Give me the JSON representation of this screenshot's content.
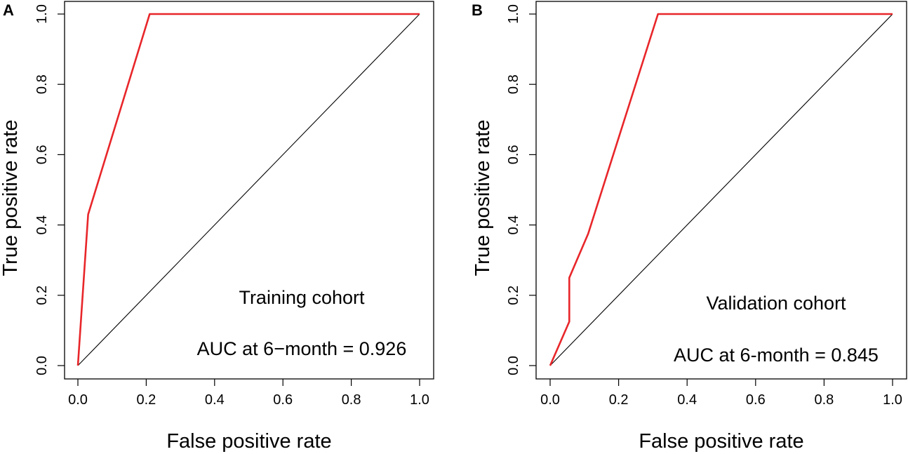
{
  "chart_data": [
    {
      "type": "line",
      "panel_label": "A",
      "xlabel": "False positive rate",
      "ylabel": "True positive rate",
      "xlim": [
        0,
        1
      ],
      "ylim": [
        0,
        1
      ],
      "xticks": [
        "0.0",
        "0.2",
        "0.4",
        "0.6",
        "0.8",
        "1.0"
      ],
      "yticks": [
        "0.0",
        "0.2",
        "0.4",
        "0.6",
        "0.8",
        "1.0"
      ],
      "annotations": {
        "cohort": "Training cohort",
        "auc": "AUC at 6−month = 0.926"
      },
      "series": [
        {
          "name": "ROC",
          "color": "#e8262a",
          "x": [
            0,
            0.03,
            0.21,
            1.0
          ],
          "y": [
            0,
            0.43,
            1.0,
            1.0
          ]
        },
        {
          "name": "Reference",
          "color": "#000000",
          "x": [
            0,
            1
          ],
          "y": [
            0,
            1
          ]
        }
      ]
    },
    {
      "type": "line",
      "panel_label": "B",
      "xlabel": "False positive rate",
      "ylabel": "True positive rate",
      "xlim": [
        0,
        1
      ],
      "ylim": [
        0,
        1
      ],
      "xticks": [
        "0.0",
        "0.2",
        "0.4",
        "0.6",
        "0.8",
        "1.0"
      ],
      "yticks": [
        "0.0",
        "0.2",
        "0.4",
        "0.6",
        "0.8",
        "1.0"
      ],
      "annotations": {
        "cohort": "Validation cohort",
        "auc": "AUC at 6-month = 0.845"
      },
      "series": [
        {
          "name": "ROC",
          "color": "#e8262a",
          "x": [
            0,
            0.056,
            0.056,
            0.111,
            0.315,
            1.0
          ],
          "y": [
            0,
            0.125,
            0.25,
            0.375,
            1.0,
            1.0
          ]
        },
        {
          "name": "Reference",
          "color": "#000000",
          "x": [
            0,
            1
          ],
          "y": [
            0,
            1
          ]
        }
      ]
    }
  ]
}
